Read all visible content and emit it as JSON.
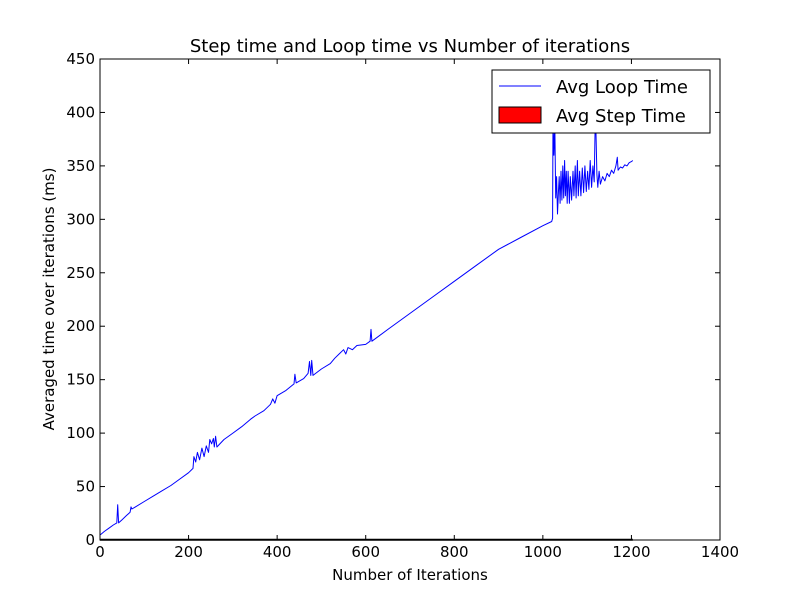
{
  "chart_data": {
    "type": "line",
    "title": "Step time and Loop time vs Number of iterations",
    "xlabel": "Number of Iterations",
    "ylabel": "Averaged time over iterations (ms)",
    "xlim": [
      0,
      1400
    ],
    "ylim": [
      0,
      450
    ],
    "x_ticks": [
      0,
      200,
      400,
      600,
      800,
      1000,
      1200,
      1400
    ],
    "y_ticks": [
      0,
      50,
      100,
      150,
      200,
      250,
      300,
      350,
      400,
      450
    ],
    "grid": false,
    "legend_position": "top-right",
    "legend": [
      {
        "label": "Avg Loop Time",
        "style": "line",
        "color": "#0000ff"
      },
      {
        "label": "Avg Step Time",
        "style": "patch",
        "color": "#ff0000"
      }
    ],
    "series": [
      {
        "name": "Avg Loop Time",
        "color": "#0000ff",
        "points": [
          [
            1,
            5
          ],
          [
            10,
            8
          ],
          [
            20,
            11
          ],
          [
            30,
            14
          ],
          [
            38,
            16
          ],
          [
            40,
            33
          ],
          [
            42,
            16
          ],
          [
            50,
            19
          ],
          [
            60,
            23
          ],
          [
            68,
            26
          ],
          [
            70,
            31
          ],
          [
            72,
            29
          ],
          [
            80,
            31
          ],
          [
            100,
            36
          ],
          [
            120,
            41
          ],
          [
            140,
            46
          ],
          [
            160,
            51
          ],
          [
            180,
            57
          ],
          [
            200,
            63
          ],
          [
            210,
            67
          ],
          [
            212,
            78
          ],
          [
            216,
            73
          ],
          [
            220,
            82
          ],
          [
            225,
            75
          ],
          [
            230,
            86
          ],
          [
            235,
            78
          ],
          [
            240,
            88
          ],
          [
            245,
            82
          ],
          [
            248,
            94
          ],
          [
            252,
            90
          ],
          [
            256,
            95
          ],
          [
            258,
            87
          ],
          [
            261,
            97
          ],
          [
            264,
            87
          ],
          [
            280,
            94
          ],
          [
            300,
            100
          ],
          [
            320,
            106
          ],
          [
            340,
            113
          ],
          [
            350,
            116
          ],
          [
            370,
            121
          ],
          [
            385,
            127
          ],
          [
            390,
            132
          ],
          [
            395,
            128
          ],
          [
            400,
            135
          ],
          [
            420,
            140
          ],
          [
            438,
            146
          ],
          [
            440,
            155
          ],
          [
            443,
            147
          ],
          [
            460,
            151
          ],
          [
            470,
            156
          ],
          [
            473,
            167
          ],
          [
            476,
            154
          ],
          [
            478,
            168
          ],
          [
            481,
            154
          ],
          [
            500,
            160
          ],
          [
            520,
            165
          ],
          [
            530,
            170
          ],
          [
            540,
            174
          ],
          [
            550,
            178
          ],
          [
            555,
            174
          ],
          [
            560,
            180
          ],
          [
            570,
            178
          ],
          [
            580,
            182
          ],
          [
            600,
            183
          ],
          [
            610,
            186
          ],
          [
            612,
            197
          ],
          [
            614,
            186
          ],
          [
            650,
            197
          ],
          [
            700,
            212
          ],
          [
            750,
            227
          ],
          [
            800,
            242
          ],
          [
            850,
            257
          ],
          [
            900,
            272
          ],
          [
            950,
            283
          ],
          [
            1000,
            294
          ],
          [
            1020,
            298
          ],
          [
            1022,
            301
          ],
          [
            1023,
            395
          ],
          [
            1025,
            360
          ],
          [
            1027,
            390
          ],
          [
            1029,
            320
          ],
          [
            1031,
            340
          ],
          [
            1033,
            305
          ],
          [
            1035,
            325
          ],
          [
            1037,
            340
          ],
          [
            1039,
            315
          ],
          [
            1041,
            345
          ],
          [
            1043,
            318
          ],
          [
            1045,
            350
          ],
          [
            1047,
            320
          ],
          [
            1049,
            355
          ],
          [
            1051,
            322
          ],
          [
            1053,
            345
          ],
          [
            1055,
            315
          ],
          [
            1057,
            345
          ],
          [
            1060,
            315
          ],
          [
            1062,
            340
          ],
          [
            1065,
            318
          ],
          [
            1068,
            345
          ],
          [
            1070,
            322
          ],
          [
            1073,
            350
          ],
          [
            1075,
            320
          ],
          [
            1078,
            355
          ],
          [
            1080,
            322
          ],
          [
            1083,
            345
          ],
          [
            1086,
            322
          ],
          [
            1089,
            348
          ],
          [
            1092,
            325
          ],
          [
            1095,
            350
          ],
          [
            1098,
            326
          ],
          [
            1101,
            345
          ],
          [
            1104,
            328
          ],
          [
            1107,
            355
          ],
          [
            1110,
            330
          ],
          [
            1113,
            350
          ],
          [
            1116,
            335
          ],
          [
            1118,
            385
          ],
          [
            1120,
            380
          ],
          [
            1122,
            342
          ],
          [
            1124,
            330
          ],
          [
            1127,
            345
          ],
          [
            1130,
            333
          ],
          [
            1135,
            340
          ],
          [
            1140,
            336
          ],
          [
            1145,
            343
          ],
          [
            1150,
            340
          ],
          [
            1155,
            346
          ],
          [
            1160,
            343
          ],
          [
            1165,
            350
          ],
          [
            1168,
            358
          ],
          [
            1170,
            346
          ],
          [
            1175,
            349
          ],
          [
            1180,
            348
          ],
          [
            1185,
            351
          ],
          [
            1190,
            350
          ],
          [
            1195,
            353
          ],
          [
            1200,
            354
          ],
          [
            1203,
            355
          ]
        ]
      },
      {
        "name": "Avg Step Time",
        "color": "#ff0000",
        "points": [
          [
            0,
            0.3
          ],
          [
            1203,
            0.3
          ]
        ]
      }
    ]
  }
}
